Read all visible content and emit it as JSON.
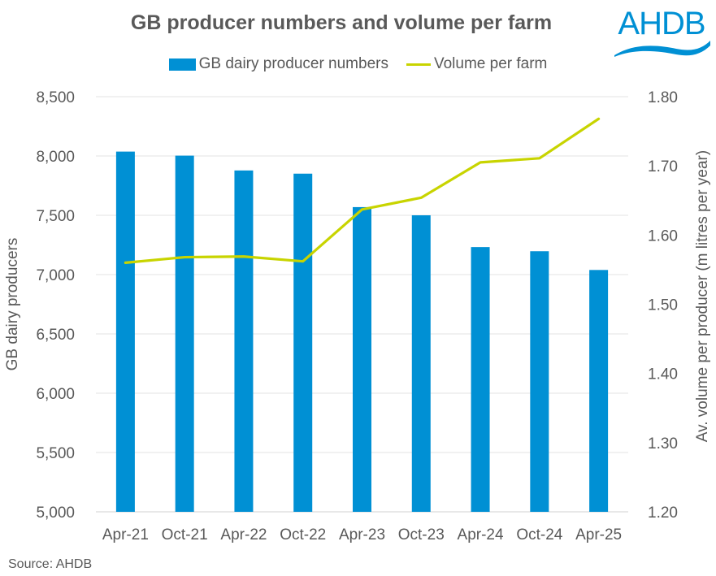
{
  "title": "GB producer numbers and volume per farm",
  "logo_text": "AHDB",
  "source": "Source: AHDB",
  "colors": {
    "bars": "#0090D4",
    "line": "#C8D400",
    "logo": "#0090D4"
  },
  "chart_data": {
    "type": "bar+line",
    "title": "GB producer numbers and volume per farm",
    "categories": [
      "Apr-21",
      "Oct-21",
      "Apr-22",
      "Oct-22",
      "Apr-23",
      "Oct-23",
      "Apr-24",
      "Oct-24",
      "Apr-25"
    ],
    "series": [
      {
        "name": "GB dairy producer numbers",
        "type": "bar",
        "axis": "left",
        "values": [
          8037,
          8003,
          7878,
          7851,
          7569,
          7500,
          7232,
          7197,
          7039
        ]
      },
      {
        "name": "Volume per farm",
        "type": "line",
        "axis": "right",
        "values": [
          1.56,
          1.568,
          1.569,
          1.562,
          1.637,
          1.654,
          1.705,
          1.711,
          1.768
        ]
      }
    ],
    "ylabel": "GB dairy producers",
    "ylabel_right": "Av. volume per producer (m litres per year)",
    "ylim": [
      5000,
      8500
    ],
    "ylim_right": [
      1.2,
      1.8
    ],
    "yticks": [
      "5,000",
      "5,500",
      "6,000",
      "6,500",
      "7,000",
      "7,500",
      "8,000",
      "8,500"
    ],
    "yticks_right": [
      "1.20",
      "1.30",
      "1.40",
      "1.50",
      "1.60",
      "1.70",
      "1.80"
    ],
    "grid": true,
    "legend": "top"
  }
}
